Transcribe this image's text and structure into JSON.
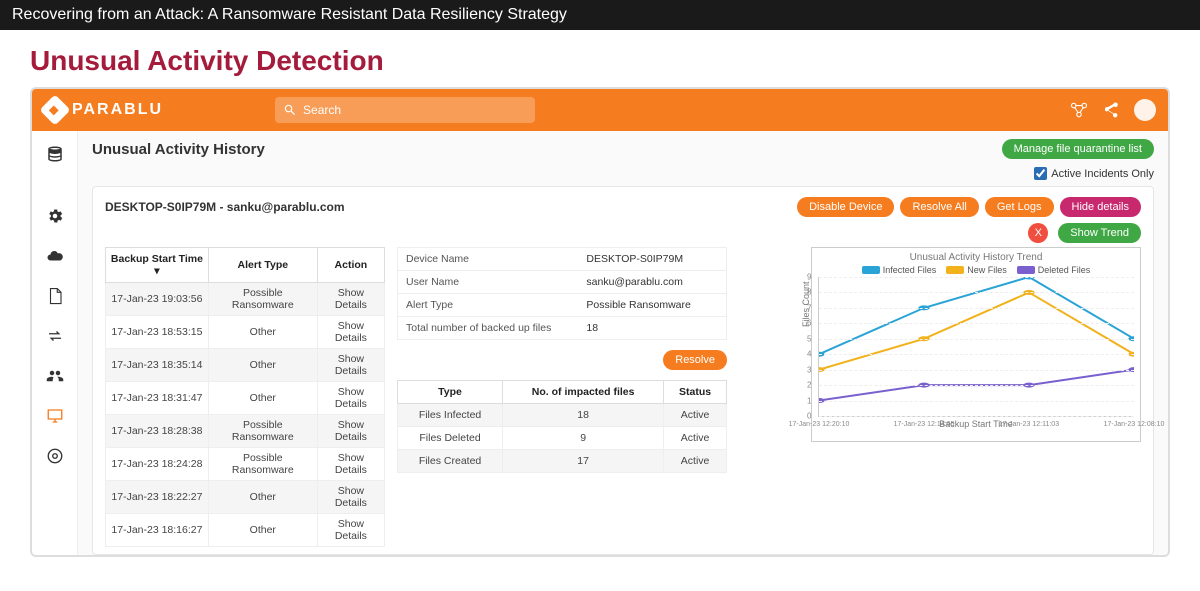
{
  "video_title": "Recovering from an Attack: A Ransomware Resistant Data Resiliency Strategy",
  "slide_title": "Unusual Activity Detection",
  "brand": "PARABLU",
  "search": {
    "placeholder": "Search"
  },
  "section_title": "Unusual Activity History",
  "manage_btn": "Manage file quarantine list",
  "active_only": "Active Incidents Only",
  "device_line": "DESKTOP-S0IP79M - sanku@parablu.com",
  "actions": {
    "disable": "Disable Device",
    "resolve_all": "Resolve All",
    "get_logs": "Get Logs",
    "hide": "Hide details",
    "show_trend": "Show Trend",
    "resolve": "Resolve",
    "show_details": "Show Details"
  },
  "history": {
    "cols": {
      "time": "Backup Start Time ▾",
      "type": "Alert Type",
      "action": "Action"
    },
    "rows": [
      {
        "time": "17-Jan-23 19:03:56",
        "type": "Possible Ransomware"
      },
      {
        "time": "17-Jan-23 18:53:15",
        "type": "Other"
      },
      {
        "time": "17-Jan-23 18:35:14",
        "type": "Other"
      },
      {
        "time": "17-Jan-23 18:31:47",
        "type": "Other"
      },
      {
        "time": "17-Jan-23 18:28:38",
        "type": "Possible Ransomware"
      },
      {
        "time": "17-Jan-23 18:24:28",
        "type": "Possible Ransomware"
      },
      {
        "time": "17-Jan-23 18:22:27",
        "type": "Other"
      },
      {
        "time": "17-Jan-23 18:16:27",
        "type": "Other"
      }
    ]
  },
  "details": {
    "device_name_l": "Device Name",
    "device_name_v": "DESKTOP-S0IP79M",
    "user_l": "User Name",
    "user_v": "sanku@parablu.com",
    "alert_l": "Alert Type",
    "alert_v": "Possible Ransomware",
    "total_l": "Total number of backed up files",
    "total_v": "18"
  },
  "impact": {
    "cols": {
      "type": "Type",
      "num": "No. of impacted files",
      "status": "Status"
    },
    "rows": [
      {
        "type": "Files Infected",
        "num": "18",
        "status": "Active"
      },
      {
        "type": "Files Deleted",
        "num": "9",
        "status": "Active"
      },
      {
        "type": "Files Created",
        "num": "17",
        "status": "Active"
      }
    ]
  },
  "chart": {
    "title": "Unusual Activity History Trend",
    "legend": {
      "infected": "Infected Files",
      "new": "New Files",
      "deleted": "Deleted Files"
    },
    "colors": {
      "infected": "#2aa3d6",
      "new": "#f1b21b",
      "deleted": "#7a5fcf",
      "grid": "#eeeeee"
    },
    "ylim": [
      0,
      9
    ],
    "yticks": [
      0,
      1,
      2,
      3,
      4,
      5,
      6,
      7,
      8,
      9
    ],
    "ylabel": "Files Count",
    "xlabel": "Backup Start Time",
    "xticks": [
      "17-Jan-23 12:20:10",
      "17-Jan-23 12:14:05",
      "17-Jan-23 12:11:03",
      "17-Jan-23 12:08:10"
    ],
    "series": {
      "infected": [
        4,
        7,
        9,
        5
      ],
      "new": [
        3,
        5,
        8,
        4
      ],
      "deleted": [
        1,
        2,
        2,
        3
      ]
    }
  }
}
